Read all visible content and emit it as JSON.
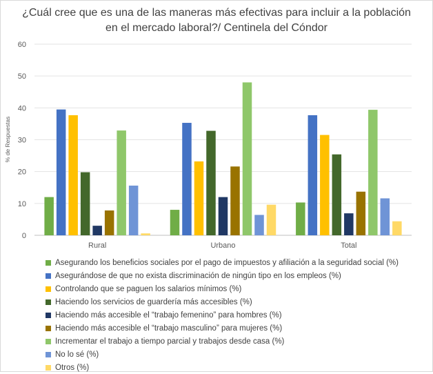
{
  "chart_data": {
    "type": "bar",
    "title_line1": "¿Cuál cree que es una de las maneras más efectivas para incluir a la población",
    "title_line2": "en el mercado laboral?/ Centinela del Cóndor",
    "ylabel": "% de Respuestas",
    "xlabel": "",
    "ylim": [
      0,
      60
    ],
    "yticks": [
      "0",
      "10",
      "20",
      "30",
      "40",
      "50",
      "60"
    ],
    "grid": true,
    "legend_position": "bottom",
    "categories": [
      "Rural",
      "Urbano",
      "Total"
    ],
    "series": [
      {
        "name": "Asegurando los beneficios sociales por el pago de impuestos y afiliación a la seguridad social (%)",
        "color": "#70ad47",
        "values": [
          12,
          8,
          10.3
        ]
      },
      {
        "name": "Asegurándose de que no exista discriminación de ningún tipo en los empleos (%)",
        "color": "#4472c4",
        "values": [
          39.5,
          35.3,
          37.7
        ]
      },
      {
        "name": "Controlando que se paguen los salarios mínimos (%)",
        "color": "#ffc000",
        "values": [
          37.7,
          23.2,
          31.5
        ]
      },
      {
        "name": "Haciendo los servicios de guardería más accesibles (%)",
        "color": "#43682b",
        "values": [
          19.8,
          32.8,
          25.4
        ]
      },
      {
        "name": "Haciendo más accesible el “trabajo femenino” para hombres (%)",
        "color": "#203864",
        "values": [
          3,
          12,
          6.9
        ]
      },
      {
        "name": "Haciendo más accesible el “trabajo masculino” para mujeres (%)",
        "color": "#997300",
        "values": [
          7.8,
          21.6,
          13.7
        ]
      },
      {
        "name": "Incrementar el trabajo a tiempo parcial y trabajos desde casa (%)",
        "color": "#8fc76a",
        "values": [
          32.9,
          48,
          39.4
        ]
      },
      {
        "name": "No lo sé (%)",
        "color": "#6f94d6",
        "values": [
          15.6,
          6.4,
          11.6
        ]
      },
      {
        "name": "Otros (%)",
        "color": "#ffd966",
        "values": [
          0.6,
          9.6,
          4.4
        ]
      }
    ]
  }
}
